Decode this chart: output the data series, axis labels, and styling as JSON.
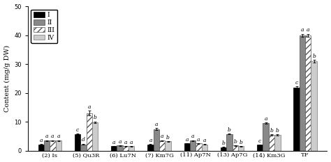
{
  "categories": [
    "(2) Is",
    "(5) Qu3R",
    "(6) Lu7N",
    "(7) Km7G",
    "(11) Ap7N",
    "(13) Ap7G",
    "(14) Km3G",
    "TF"
  ],
  "series": {
    "I": [
      2.2,
      5.8,
      1.5,
      2.2,
      2.5,
      1.2,
      2.0,
      21.8
    ],
    "II": [
      3.5,
      2.2,
      1.8,
      7.5,
      3.5,
      5.8,
      9.5,
      40.0
    ],
    "III": [
      3.5,
      13.0,
      1.5,
      3.5,
      2.5,
      1.8,
      5.5,
      40.0
    ],
    "IV": [
      3.5,
      9.8,
      1.5,
      3.2,
      2.2,
      1.5,
      5.5,
      31.0
    ]
  },
  "errors": {
    "I": [
      0.1,
      0.2,
      0.1,
      0.1,
      0.1,
      0.1,
      0.1,
      0.5
    ],
    "II": [
      0.1,
      0.2,
      0.1,
      0.3,
      0.1,
      0.2,
      0.3,
      0.5
    ],
    "III": [
      0.1,
      0.8,
      0.1,
      0.1,
      0.1,
      0.1,
      0.2,
      0.5
    ],
    "IV": [
      0.1,
      0.3,
      0.1,
      0.1,
      0.1,
      0.1,
      0.2,
      0.5
    ]
  },
  "sig_labels": {
    "I": [
      "a",
      "c",
      "a",
      "a",
      "a",
      "b",
      "c",
      "c"
    ],
    "II": [
      "a",
      "d",
      "a",
      "a",
      "a",
      "b",
      "a",
      "a"
    ],
    "III": [
      "a",
      "a",
      "a",
      "a",
      "a",
      "b",
      "b",
      "a"
    ],
    "IV": [
      "a",
      "b",
      "a",
      "b",
      "a",
      "b",
      "b",
      "b"
    ]
  },
  "colors": {
    "I": "#000000",
    "II": "#888888",
    "III": "#ffffff",
    "IV": "#cccccc"
  },
  "hatches": {
    "I": "",
    "II": "",
    "III": "////",
    "IV": ""
  },
  "edgecolors": {
    "I": "#000000",
    "II": "#444444",
    "III": "#555555",
    "IV": "#777777"
  },
  "ylabel": "Content (mg/g DW)",
  "ylim": [
    0,
    50
  ],
  "yticks": [
    0,
    10,
    20,
    30,
    40,
    50
  ],
  "bar_width": 0.16,
  "axis_fontsize": 7,
  "tick_fontsize": 6,
  "sig_fontsize": 5.5,
  "legend_fontsize": 6.5
}
